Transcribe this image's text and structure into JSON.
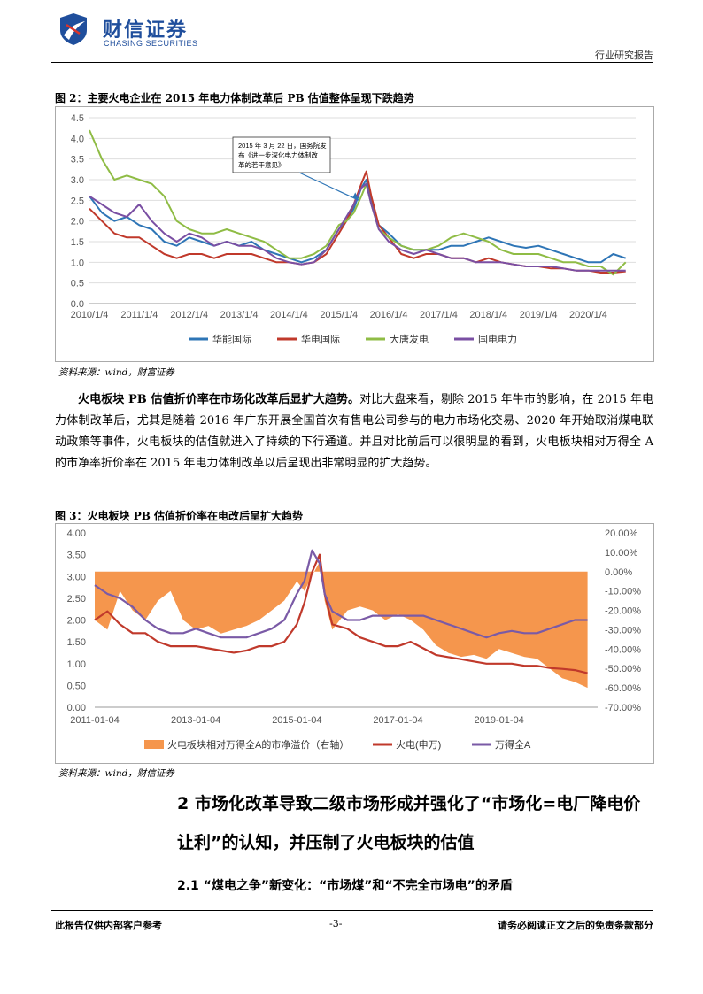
{
  "header": {
    "logo_cn": "财信证券",
    "logo_en": "CHASING SECURITIES",
    "report_type": "行业研究报告"
  },
  "figure2": {
    "title": "图 2：主要火电企业在 2015 年电力体制改革后 PB 估值整体呈现下跌趋势",
    "source": "资料来源：wind，财富证券",
    "annotation": [
      "2015 年 3 月 22 日，国务院发",
      "布《进一步深化电力体制改",
      "革的若干意见》"
    ]
  },
  "paragraph": {
    "bold_lead": "火电板块 PB 估值折价率在市场化改革后显扩大趋势。",
    "body": "对比大盘来看，剔除 2015 年牛市的影响，在 2015 年电力体制改革后，尤其是随着 2016 年广东开展全国首次有售电公司参与的电力市场化交易、2020 年开始取消煤电联动政策等事件，火电板块的估值就进入了持续的下行通道。并且对比前后可以很明显的看到，火电板块相对万得全 A 的市净率折价率在 2015 年电力体制改革以后呈现出非常明显的扩大趋势。"
  },
  "figure3": {
    "title": "图 3：火电板块 PB 估值折价率在电改后呈扩大趋势",
    "source": "资料来源：wind，财信证券"
  },
  "section2": {
    "heading": "2 市场化改革导致二级市场形成并强化了“市场化=电厂降电价让利”的认知，并压制了火电板块的估值",
    "subheading": "2.1 “煤电之争”新变化：“市场煤”和“不完全市场电”的矛盾"
  },
  "footer": {
    "left": "此报告仅供内部客户参考",
    "center": "-3-",
    "right": "请务必阅读正文之后的免责条款部分"
  },
  "chart_data": [
    {
      "type": "line",
      "title": "",
      "x_ticks": [
        "2010/1/4",
        "2011/1/4",
        "2012/1/4",
        "2013/1/4",
        "2014/1/4",
        "2015/1/4",
        "2016/1/4",
        "2017/1/4",
        "2018/1/4",
        "2019/1/4",
        "2020/1/4"
      ],
      "y_ticks": [
        "0.0",
        "0.5",
        "1.0",
        "1.5",
        "2.0",
        "2.5",
        "3.0",
        "3.5",
        "4.0",
        "4.5"
      ],
      "ylim": [
        0,
        4.5
      ],
      "x": [
        2010.0,
        2010.25,
        2010.5,
        2010.75,
        2011.0,
        2011.25,
        2011.5,
        2011.75,
        2012.0,
        2012.25,
        2012.5,
        2012.75,
        2013.0,
        2013.25,
        2013.5,
        2013.75,
        2014.0,
        2014.25,
        2014.5,
        2014.75,
        2015.0,
        2015.15,
        2015.3,
        2015.45,
        2015.55,
        2015.65,
        2015.8,
        2016.0,
        2016.25,
        2016.5,
        2016.75,
        2017.0,
        2017.25,
        2017.5,
        2017.75,
        2018.0,
        2018.25,
        2018.5,
        2018.75,
        2019.0,
        2019.25,
        2019.5,
        2019.75,
        2020.0,
        2020.25,
        2020.5,
        2020.75
      ],
      "series": [
        {
          "name": "华能国际",
          "color": "#2e75b6",
          "values": [
            2.6,
            2.2,
            2.0,
            2.1,
            1.9,
            1.8,
            1.5,
            1.4,
            1.6,
            1.5,
            1.4,
            1.5,
            1.4,
            1.5,
            1.3,
            1.2,
            1.1,
            1.0,
            1.1,
            1.3,
            1.8,
            2.0,
            2.3,
            2.8,
            3.0,
            2.5,
            1.9,
            1.7,
            1.4,
            1.3,
            1.3,
            1.3,
            1.4,
            1.4,
            1.5,
            1.6,
            1.5,
            1.4,
            1.35,
            1.4,
            1.3,
            1.2,
            1.1,
            1.0,
            1.0,
            1.2,
            1.1
          ]
        },
        {
          "name": "华电国际",
          "color": "#c0392b",
          "values": [
            2.3,
            2.0,
            1.7,
            1.6,
            1.6,
            1.4,
            1.2,
            1.1,
            1.2,
            1.2,
            1.1,
            1.2,
            1.2,
            1.2,
            1.1,
            1.0,
            1.0,
            0.95,
            1.0,
            1.2,
            1.7,
            2.0,
            2.4,
            2.9,
            3.2,
            2.6,
            1.9,
            1.6,
            1.2,
            1.1,
            1.2,
            1.2,
            1.1,
            1.1,
            1.0,
            1.1,
            1.0,
            0.95,
            0.9,
            0.9,
            0.85,
            0.85,
            0.8,
            0.8,
            0.75,
            0.75,
            0.78
          ]
        },
        {
          "name": "大唐发电",
          "color": "#8fbc45",
          "values": [
            4.2,
            3.5,
            3.0,
            3.1,
            3.0,
            2.9,
            2.6,
            2.0,
            1.8,
            1.7,
            1.7,
            1.8,
            1.7,
            1.6,
            1.5,
            1.3,
            1.1,
            1.1,
            1.2,
            1.4,
            1.9,
            2.0,
            2.2,
            2.6,
            2.9,
            2.4,
            1.8,
            1.6,
            1.4,
            1.3,
            1.3,
            1.4,
            1.6,
            1.7,
            1.6,
            1.5,
            1.3,
            1.2,
            1.2,
            1.2,
            1.1,
            1.0,
            1.0,
            0.9,
            0.9,
            0.7,
            1.0
          ]
        },
        {
          "name": "国电电力",
          "color": "#7a4fa3",
          "values": [
            2.6,
            2.4,
            2.2,
            2.1,
            2.4,
            2.0,
            1.7,
            1.5,
            1.7,
            1.6,
            1.4,
            1.5,
            1.4,
            1.4,
            1.3,
            1.1,
            1.0,
            0.95,
            1.0,
            1.3,
            1.8,
            2.1,
            2.4,
            2.8,
            2.9,
            2.4,
            1.8,
            1.5,
            1.3,
            1.2,
            1.3,
            1.2,
            1.1,
            1.1,
            1.0,
            1.0,
            1.0,
            0.95,
            0.9,
            0.9,
            0.9,
            0.85,
            0.8,
            0.8,
            0.8,
            0.8,
            0.8
          ]
        }
      ]
    },
    {
      "type": "area",
      "title": "",
      "x_ticks": [
        "2011-01-04",
        "2013-01-04",
        "2015-01-04",
        "2017-01-04",
        "2019-01-04"
      ],
      "y_ticks_left": [
        "0.00",
        "0.50",
        "1.00",
        "1.50",
        "2.00",
        "2.50",
        "3.00",
        "3.50",
        "4.00"
      ],
      "y_ticks_right": [
        "20.00%",
        "10.00%",
        "0.00%",
        "-10.00%",
        "-20.00%",
        "-30.00%",
        "-40.00%",
        "-50.00%",
        "-60.00%",
        "-70.00%"
      ],
      "ylim_left": [
        0,
        4.0
      ],
      "ylim_right": [
        -70,
        20
      ],
      "x": [
        2011.0,
        2011.25,
        2011.5,
        2011.75,
        2012.0,
        2012.25,
        2012.5,
        2012.75,
        2013.0,
        2013.25,
        2013.5,
        2013.75,
        2014.0,
        2014.25,
        2014.5,
        2014.75,
        2015.0,
        2015.15,
        2015.3,
        2015.45,
        2015.55,
        2015.7,
        2016.0,
        2016.25,
        2016.5,
        2016.75,
        2017.0,
        2017.25,
        2017.5,
        2017.75,
        2018.0,
        2018.25,
        2018.5,
        2018.75,
        2019.0,
        2019.25,
        2019.5,
        2019.75,
        2020.0,
        2020.25,
        2020.5,
        2020.75
      ],
      "series": [
        {
          "name": "火电板块相对万得全A的市净溢价（右轴）",
          "axis": "right",
          "color": "#f5964d",
          "values": [
            -25,
            -30,
            -10,
            -20,
            -25,
            -15,
            -10,
            -25,
            -30,
            -28,
            -32,
            -30,
            -28,
            -25,
            -20,
            -15,
            -5,
            -10,
            -2,
            5,
            -15,
            -30,
            -20,
            -18,
            -20,
            -25,
            -22,
            -25,
            -30,
            -38,
            -42,
            -44,
            -43,
            -45,
            -40,
            -42,
            -44,
            -45,
            -50,
            -55,
            -57,
            -60
          ]
        },
        {
          "name": "火电(申万)",
          "axis": "left",
          "color": "#c0392b",
          "values": [
            2.0,
            2.2,
            1.9,
            1.7,
            1.7,
            1.5,
            1.4,
            1.4,
            1.4,
            1.35,
            1.3,
            1.25,
            1.3,
            1.4,
            1.4,
            1.5,
            1.9,
            2.4,
            3.1,
            3.5,
            2.6,
            1.9,
            1.8,
            1.6,
            1.5,
            1.4,
            1.4,
            1.5,
            1.35,
            1.2,
            1.15,
            1.1,
            1.05,
            1.0,
            1.0,
            1.0,
            0.95,
            0.95,
            0.9,
            0.88,
            0.85,
            0.78
          ]
        },
        {
          "name": "万得全A",
          "axis": "left",
          "color": "#7a5aa6",
          "values": [
            2.8,
            2.6,
            2.5,
            2.3,
            2.0,
            1.8,
            1.7,
            1.7,
            1.8,
            1.7,
            1.6,
            1.6,
            1.6,
            1.7,
            1.8,
            2.0,
            2.6,
            2.9,
            3.6,
            3.3,
            2.6,
            2.2,
            2.0,
            2.0,
            2.1,
            2.1,
            2.1,
            2.1,
            2.1,
            2.0,
            1.9,
            1.8,
            1.7,
            1.6,
            1.7,
            1.75,
            1.7,
            1.7,
            1.8,
            1.9,
            2.0,
            2.0
          ]
        }
      ]
    }
  ]
}
